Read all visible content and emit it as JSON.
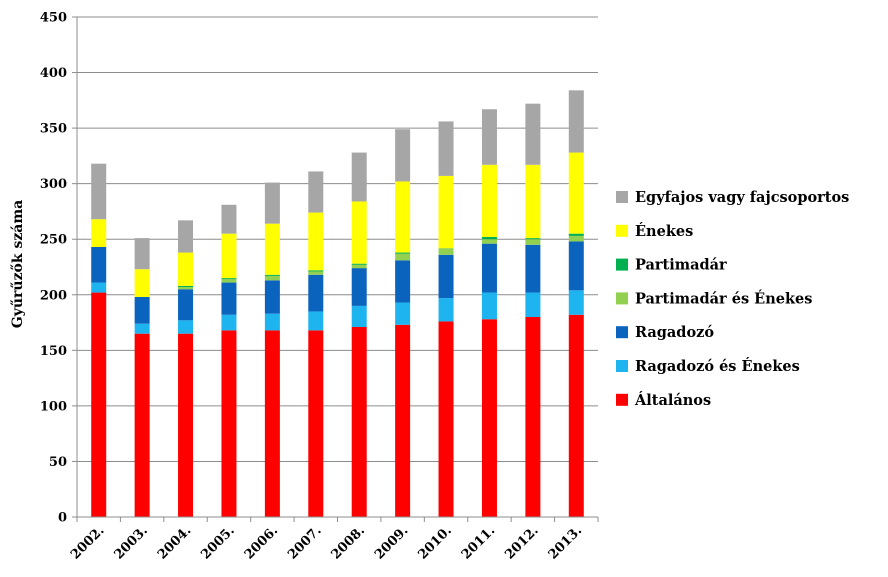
{
  "chart_data": {
    "type": "bar",
    "stacked": true,
    "title": "",
    "xlabel": "",
    "ylabel": "Gyűrűzők száma",
    "ylim": [
      0,
      450
    ],
    "yticks": [
      0,
      50,
      100,
      150,
      200,
      250,
      300,
      350,
      400,
      450
    ],
    "grid": true,
    "legend_position": "right",
    "categories": [
      "2002.",
      "2003.",
      "2004.",
      "2005.",
      "2006.",
      "2007.",
      "2008.",
      "2009.",
      "2010.",
      "2011.",
      "2012.",
      "2013."
    ],
    "series": [
      {
        "name": "Általános",
        "color": "#ff0000",
        "values": [
          202,
          165,
          165,
          168,
          168,
          168,
          171,
          173,
          176,
          178,
          180,
          182
        ]
      },
      {
        "name": "Ragadozó és Énekes",
        "color": "#1eb4f0",
        "values": [
          9,
          9,
          12,
          14,
          15,
          17,
          19,
          20,
          21,
          24,
          22,
          22
        ]
      },
      {
        "name": "Ragadozó",
        "color": "#0a64be",
        "values": [
          32,
          24,
          28,
          29,
          30,
          33,
          34,
          38,
          39,
          44,
          43,
          44
        ]
      },
      {
        "name": "Partimadár és Énekes",
        "color": "#92d050",
        "values": [
          0,
          0,
          2,
          3,
          4,
          3,
          3,
          6,
          6,
          4,
          5,
          5
        ]
      },
      {
        "name": "Partimadár",
        "color": "#00b050",
        "values": [
          0,
          0,
          1,
          1,
          1,
          1,
          1,
          1,
          0,
          2,
          1,
          2
        ]
      },
      {
        "name": "Énekes",
        "color": "#ffff00",
        "values": [
          25,
          25,
          30,
          40,
          46,
          52,
          56,
          64,
          65,
          65,
          66,
          73
        ]
      },
      {
        "name": "Egyfajos vagy fajcsoportos",
        "color": "#a6a6a6",
        "values": [
          50,
          28,
          29,
          26,
          37,
          37,
          44,
          47,
          49,
          50,
          55,
          56
        ]
      }
    ]
  }
}
